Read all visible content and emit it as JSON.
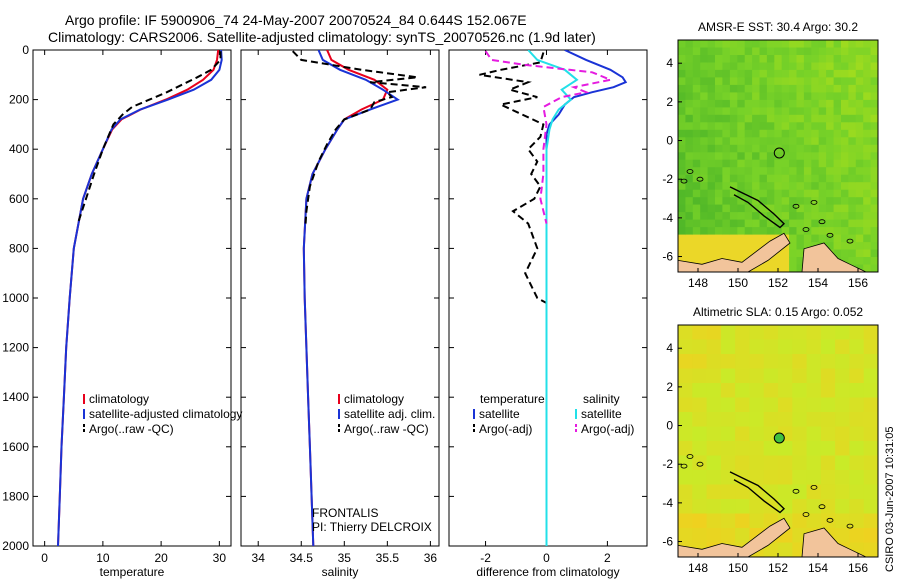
{
  "header": {
    "line1": "Argo profile: IF 5900906_74 24-May-2007 20070524_84 0.644S 152.067E",
    "line2": "Climatology: CARS2006. Satellite-adjusted climatology: synTS_20070526.nc (1.9d later)"
  },
  "footer": {
    "credit": "CSIRO 03-Jun-2007 10:31:05",
    "frontalis": "FRONTALIS",
    "pi": "PI: Thierry DELCROIX"
  },
  "colors": {
    "climatology": "#e8001c",
    "satellite": "#1a33d6",
    "argo": "#000000",
    "sal_satellite": "#22e0e8",
    "sal_argo": "#e51ce0",
    "land": "#f2c49b"
  },
  "chart_data": [
    {
      "type": "line",
      "xlabel": "temperature",
      "ylabel": "",
      "xlim": [
        -2,
        32
      ],
      "ylim": [
        2000,
        0
      ],
      "xticks": [
        0,
        10,
        20,
        30
      ],
      "yticks": [
        0,
        200,
        400,
        600,
        800,
        1000,
        1200,
        1400,
        1600,
        1800,
        2000
      ],
      "legend": [
        "climatology",
        "satellite-adjusted climatology",
        "Argo(..raw -QC)"
      ],
      "legend_placement": "bottom-center",
      "series": [
        {
          "name": "climatology",
          "style": "solid",
          "color": "#e8001c",
          "depth": [
            0,
            40,
            80,
            120,
            160,
            200,
            240,
            280,
            320,
            400,
            500,
            600,
            800,
            1000,
            1200,
            1400,
            1600,
            1800,
            2000
          ],
          "values": [
            29.8,
            29.6,
            29.0,
            27.2,
            24.5,
            20.8,
            16.5,
            13.2,
            11.6,
            10.0,
            8.1,
            6.6,
            5.0,
            4.3,
            3.7,
            3.3,
            2.9,
            2.6,
            2.3
          ]
        },
        {
          "name": "satellite-adjusted climatology",
          "style": "solid",
          "color": "#1a33d6",
          "depth": [
            0,
            40,
            80,
            120,
            160,
            200,
            240,
            280,
            320,
            400,
            500,
            600,
            800,
            1000,
            1200,
            1400,
            1600,
            1800,
            2000
          ],
          "values": [
            30.3,
            30.4,
            30.0,
            28.6,
            25.6,
            21.2,
            16.4,
            13.0,
            11.5,
            10.0,
            8.1,
            6.6,
            5.0,
            4.3,
            3.7,
            3.3,
            2.9,
            2.6,
            2.3
          ]
        },
        {
          "name": "Argo(..raw -QC)",
          "style": "dashed",
          "color": "#000000",
          "depth": [
            5,
            40,
            80,
            110,
            140,
            170,
            200,
            230,
            260,
            300,
            400,
            500,
            600,
            700
          ],
          "values": [
            30.2,
            30.2,
            28.6,
            26.2,
            23.6,
            21.0,
            18.0,
            15.0,
            13.4,
            11.8,
            10.0,
            8.5,
            7.1,
            5.7
          ]
        }
      ]
    },
    {
      "type": "line",
      "xlabel": "salinity",
      "xlim": [
        33.8,
        36.1
      ],
      "ylim": [
        2000,
        0
      ],
      "xticks": [
        34,
        34.5,
        35,
        35.5,
        36
      ],
      "legend": [
        "climatology",
        "satellite adj. clim.",
        "Argo(..raw -QC)"
      ],
      "legend_placement": "bottom-right",
      "series": [
        {
          "name": "climatology",
          "style": "solid",
          "color": "#e8001c",
          "depth": [
            0,
            40,
            80,
            120,
            160,
            200,
            240,
            280,
            320,
            400,
            500,
            600,
            800,
            1000,
            1200,
            1400,
            1600,
            1800,
            2000
          ],
          "values": [
            34.8,
            34.85,
            35.05,
            35.35,
            35.5,
            35.45,
            35.2,
            35.0,
            34.92,
            34.78,
            34.63,
            34.56,
            34.53,
            34.54,
            34.56,
            34.58,
            34.6,
            34.62,
            34.64
          ]
        },
        {
          "name": "satellite adj. clim.",
          "style": "solid",
          "color": "#1a33d6",
          "depth": [
            0,
            40,
            80,
            120,
            160,
            200,
            240,
            280,
            320,
            400,
            500,
            600,
            800,
            1000,
            1200,
            1400,
            1600,
            1800,
            2000
          ],
          "values": [
            34.7,
            34.75,
            34.95,
            35.25,
            35.45,
            35.62,
            35.3,
            35.0,
            34.92,
            34.78,
            34.63,
            34.56,
            34.53,
            34.54,
            34.56,
            34.58,
            34.6,
            34.62,
            34.64
          ]
        },
        {
          "name": "Argo(..raw -QC)",
          "style": "dashed",
          "color": "#000000",
          "depth": [
            5,
            40,
            80,
            110,
            130,
            150,
            170,
            190,
            210,
            240,
            280,
            320,
            380,
            450,
            550,
            650,
            700
          ],
          "values": [
            34.4,
            34.5,
            35.2,
            35.85,
            35.3,
            35.95,
            35.5,
            35.55,
            35.35,
            35.3,
            35.0,
            34.9,
            34.8,
            34.7,
            34.6,
            34.56,
            34.55
          ]
        }
      ]
    },
    {
      "type": "line",
      "xlabel": "difference from climatology",
      "xlim": [
        -3.2,
        3.3
      ],
      "ylim": [
        2000,
        0
      ],
      "xticks": [
        -2,
        0,
        2
      ],
      "legend": [
        "temperature",
        "satellite",
        "Argo(-adj)",
        "salinity",
        "satellite",
        "Argo(-adj)"
      ],
      "legend_placement": "bottom-center",
      "series": [
        {
          "name": "satellite",
          "group": "temperature",
          "style": "solid",
          "color": "#1a33d6",
          "depth": [
            0,
            40,
            80,
            110,
            130,
            150,
            170,
            190,
            220,
            260,
            300,
            340,
            400,
            500,
            600,
            800,
            1000,
            1400,
            2000
          ],
          "values": [
            0.6,
            1.3,
            2.1,
            2.5,
            2.6,
            2.2,
            1.5,
            0.9,
            0.6,
            0.4,
            0.1,
            0.0,
            0.0,
            0.0,
            0.0,
            0.0,
            0.0,
            0.0,
            0.0
          ]
        },
        {
          "name": "Argo(-adj)",
          "group": "temperature",
          "style": "dashed",
          "color": "#000000",
          "depth": [
            10,
            50,
            80,
            100,
            130,
            160,
            190,
            220,
            260,
            300,
            350,
            400,
            450,
            500,
            550,
            600,
            650,
            700,
            800,
            900,
            950,
            1000,
            1020
          ],
          "values": [
            -0.1,
            -0.2,
            -1.5,
            -2.2,
            -0.6,
            -1.2,
            -0.3,
            -1.5,
            -0.8,
            -0.1,
            -0.2,
            -0.6,
            -0.3,
            -0.5,
            -0.2,
            -0.4,
            -1.1,
            -0.6,
            -0.3,
            -0.7,
            -0.5,
            -0.3,
            0.0
          ]
        },
        {
          "name": "satellite",
          "group": "salinity",
          "style": "solid",
          "color": "#22e0e8",
          "depth": [
            0,
            40,
            80,
            120,
            160,
            200,
            240,
            280,
            320,
            400,
            500,
            600,
            2000
          ],
          "values": [
            -0.6,
            -0.3,
            0.6,
            1.0,
            0.5,
            0.8,
            0.4,
            0.2,
            0.1,
            0.0,
            0.0,
            0.0,
            0.0
          ]
        },
        {
          "name": "Argo(-adj)",
          "group": "salinity",
          "style": "dashed",
          "color": "#e51ce0",
          "depth": [
            5,
            40,
            60,
            90,
            120,
            150,
            170,
            190,
            230,
            300,
            400,
            500,
            600,
            700
          ],
          "values": [
            -2.0,
            -1.8,
            -0.7,
            1.5,
            2.1,
            0.9,
            1.3,
            0.5,
            -0.1,
            0.0,
            -0.1,
            -0.1,
            -0.2,
            0.0
          ]
        }
      ]
    },
    {
      "type": "heatmap",
      "title": "AMSR-E SST: 30.4 Argo: 30.2",
      "xlim": [
        147,
        157
      ],
      "ylim": [
        -6.8,
        5.2
      ],
      "xticks": [
        148,
        150,
        152,
        154,
        156
      ],
      "yticks": [
        -6,
        -4,
        -2,
        0,
        2,
        4
      ],
      "argo_position": [
        152.067,
        -0.644
      ],
      "marker_fill": "none"
    },
    {
      "type": "heatmap",
      "title": "Altimetric SLA: 0.15 Argo: 0.052",
      "xlim": [
        147,
        157
      ],
      "ylim": [
        -6.8,
        5.2
      ],
      "xticks": [
        148,
        150,
        152,
        154,
        156
      ],
      "yticks": [
        -6,
        -4,
        -2,
        0,
        2,
        4
      ],
      "argo_position": [
        152.067,
        -0.644
      ],
      "marker_fill": "#40c040"
    }
  ]
}
